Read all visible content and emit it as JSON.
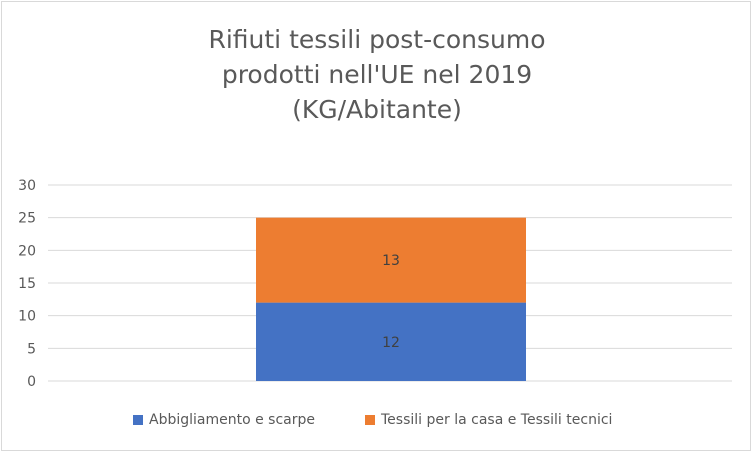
{
  "chart_data": {
    "type": "bar",
    "stacked": true,
    "title_lines": [
      "Rifiuti tessili post-consumo",
      "prodotti nell'UE nel 2019",
      "(KG/Abitante)"
    ],
    "categories": [
      ""
    ],
    "series": [
      {
        "name": "Abbigliamento e scarpe",
        "values": [
          12
        ],
        "color": "#4472c4",
        "data_labels": [
          "12"
        ]
      },
      {
        "name": "Tessili per la casa e Tessili tecnici",
        "values": [
          13
        ],
        "color": "#ed7d31",
        "data_labels": [
          "13"
        ]
      }
    ],
    "ylim": [
      0,
      30
    ],
    "yticks": [
      "0",
      "5",
      "10",
      "15",
      "20",
      "25",
      "30"
    ],
    "ytick_values": [
      0,
      5,
      10,
      15,
      20,
      25,
      30
    ],
    "grid": true,
    "legend_position": "bottom"
  }
}
